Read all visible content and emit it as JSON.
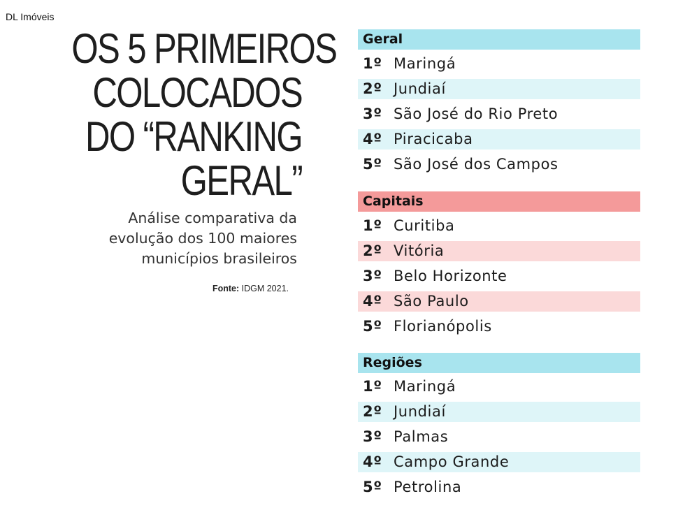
{
  "watermark": "DL Imóveis",
  "title": {
    "line1": "OS 5 PRIMEIROS",
    "line2": "COLOCADOS",
    "line3": "DO “RANKING",
    "line4": "GERAL”"
  },
  "subtitle": {
    "line1": "Análise comparativa da",
    "line2": "evolução dos 100 maiores",
    "line3": "municípios brasileiros"
  },
  "source": {
    "label": "Fonte:",
    "value": "IDGM 2021."
  },
  "colors": {
    "header_cyan": "#a8e4ee",
    "stripe_cyan": "#def5f8",
    "header_red": "#f49a9a",
    "stripe_red": "#fbd9d9"
  },
  "rankings": [
    {
      "name": "Geral",
      "items": [
        {
          "rank": "1º",
          "city": "Maringá"
        },
        {
          "rank": "2º",
          "city": "Jundiaí"
        },
        {
          "rank": "3º",
          "city": "São José do Rio Preto"
        },
        {
          "rank": "4º",
          "city": "Piracicaba"
        },
        {
          "rank": "5º",
          "city": "São José dos Campos"
        }
      ]
    },
    {
      "name": "Capitais",
      "items": [
        {
          "rank": "1º",
          "city": "Curitiba"
        },
        {
          "rank": "2º",
          "city": "Vitória"
        },
        {
          "rank": "3º",
          "city": "Belo Horizonte"
        },
        {
          "rank": "4º",
          "city": "São Paulo"
        },
        {
          "rank": "5º",
          "city": "Florianópolis"
        }
      ]
    },
    {
      "name": "Regiões",
      "items": [
        {
          "rank": "1º",
          "city": "Maringá"
        },
        {
          "rank": "2º",
          "city": "Jundiaí"
        },
        {
          "rank": "3º",
          "city": "Palmas"
        },
        {
          "rank": "4º",
          "city": "Campo Grande"
        },
        {
          "rank": "5º",
          "city": "Petrolina"
        }
      ]
    }
  ]
}
